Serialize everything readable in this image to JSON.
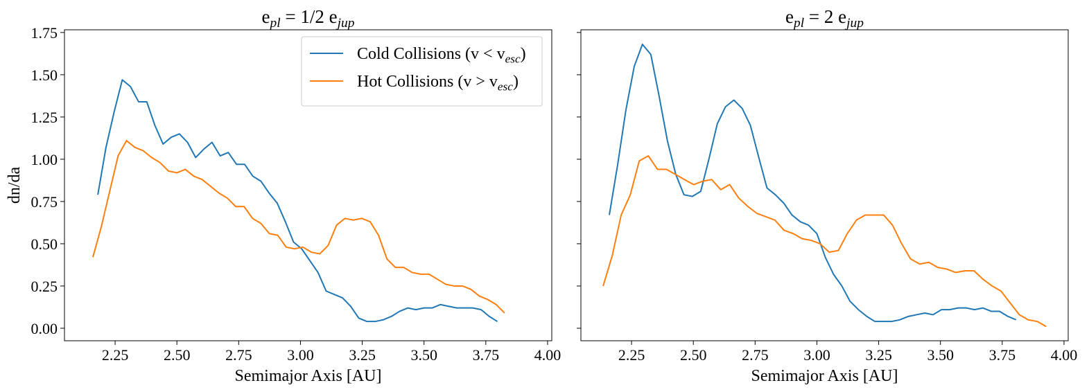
{
  "chart_data": [
    {
      "type": "line",
      "title": [
        "e",
        "pl",
        " = 1/2 e",
        "jup"
      ],
      "xlabel": "Semimajor Axis [AU]",
      "ylabel": "dn/da",
      "xlim": [
        2.045,
        4.017
      ],
      "ylim": [
        -0.074,
        1.766
      ],
      "xticks": [
        2.25,
        {
          "value": 2.5,
          "label": "2.50"
        },
        2.75,
        {
          "value": 3.0,
          "label": "3.00"
        },
        3.25,
        {
          "value": 3.5,
          "label": "3.50"
        },
        3.75,
        {
          "value": 4.0,
          "label": "4.00"
        }
      ],
      "yticks": [
        {
          "value": 0,
          "label": "0.00"
        },
        0.25,
        {
          "value": 0.5,
          "label": "0.50"
        },
        0.75,
        {
          "value": 1.0,
          "label": "1.00"
        },
        1.25,
        {
          "value": 1.5,
          "label": "1.50"
        },
        1.75
      ],
      "legend": "upper right",
      "series": [
        {
          "name": [
            "Cold Collisions (v < v",
            "esc",
            ")"
          ],
          "color": "#1f77b4",
          "x": [
            2.18,
            2.213,
            2.246,
            2.279,
            2.312,
            2.345,
            2.378,
            2.411,
            2.444,
            2.477,
            2.51,
            2.543,
            2.576,
            2.609,
            2.642,
            2.675,
            2.708,
            2.741,
            2.774,
            2.807,
            2.84,
            2.873,
            2.906,
            2.939,
            2.972,
            3.005,
            3.038,
            3.071,
            3.104,
            3.137,
            3.17,
            3.203,
            3.236,
            3.269,
            3.302,
            3.335,
            3.368,
            3.401,
            3.434,
            3.467,
            3.5,
            3.533,
            3.566,
            3.599,
            3.632,
            3.665,
            3.698,
            3.731,
            3.764,
            3.797
          ],
          "values": [
            0.79,
            1.07,
            1.28,
            1.47,
            1.43,
            1.34,
            1.34,
            1.2,
            1.09,
            1.13,
            1.15,
            1.1,
            1.01,
            1.06,
            1.1,
            1.02,
            1.04,
            0.97,
            0.97,
            0.9,
            0.87,
            0.8,
            0.74,
            0.63,
            0.51,
            0.47,
            0.4,
            0.33,
            0.22,
            0.2,
            0.18,
            0.13,
            0.06,
            0.04,
            0.04,
            0.05,
            0.07,
            0.1,
            0.12,
            0.11,
            0.12,
            0.12,
            0.14,
            0.13,
            0.12,
            0.12,
            0.12,
            0.11,
            0.07,
            0.04
          ]
        },
        {
          "name": [
            "Hot Collisions (v > v",
            "esc",
            ")"
          ],
          "color": "#ff7f0e",
          "x": [
            2.16,
            2.194,
            2.228,
            2.262,
            2.296,
            2.33,
            2.364,
            2.398,
            2.432,
            2.466,
            2.5,
            2.534,
            2.568,
            2.602,
            2.636,
            2.67,
            2.704,
            2.738,
            2.772,
            2.806,
            2.84,
            2.874,
            2.908,
            2.942,
            2.976,
            3.01,
            3.044,
            3.078,
            3.112,
            3.146,
            3.18,
            3.214,
            3.248,
            3.282,
            3.316,
            3.35,
            3.384,
            3.418,
            3.452,
            3.486,
            3.52,
            3.554,
            3.588,
            3.622,
            3.656,
            3.69,
            3.724,
            3.758,
            3.792,
            3.826
          ],
          "values": [
            0.42,
            0.6,
            0.81,
            1.02,
            1.11,
            1.07,
            1.05,
            1.01,
            0.98,
            0.93,
            0.92,
            0.94,
            0.9,
            0.88,
            0.84,
            0.8,
            0.77,
            0.72,
            0.72,
            0.65,
            0.62,
            0.56,
            0.55,
            0.48,
            0.47,
            0.48,
            0.45,
            0.44,
            0.49,
            0.61,
            0.65,
            0.64,
            0.65,
            0.63,
            0.55,
            0.41,
            0.36,
            0.36,
            0.33,
            0.32,
            0.32,
            0.29,
            0.26,
            0.25,
            0.25,
            0.23,
            0.19,
            0.17,
            0.14,
            0.09
          ]
        }
      ]
    },
    {
      "type": "line",
      "title": [
        "e",
        "pl",
        " = 2 e",
        "jup"
      ],
      "xlabel": "Semimajor Axis [AU]",
      "xlim": [
        2.045,
        4.017
      ],
      "ylim": [
        -0.074,
        1.766
      ],
      "xticks": [
        2.25,
        {
          "value": 2.5,
          "label": "2.50"
        },
        2.75,
        {
          "value": 3.0,
          "label": "3.00"
        },
        3.25,
        {
          "value": 3.5,
          "label": "3.50"
        },
        3.75,
        {
          "value": 4.0,
          "label": "4.00"
        }
      ],
      "yticks": [
        0,
        0.25,
        0.5,
        0.75,
        1.0,
        1.25,
        1.5,
        1.75
      ],
      "y_tick_labels": false,
      "series": [
        {
          "color": "#1f77b4",
          "x": [
            2.16,
            2.194,
            2.227,
            2.261,
            2.294,
            2.328,
            2.362,
            2.395,
            2.429,
            2.462,
            2.496,
            2.53,
            2.563,
            2.597,
            2.63,
            2.664,
            2.698,
            2.731,
            2.765,
            2.798,
            2.832,
            2.866,
            2.899,
            2.933,
            2.966,
            3.0,
            3.034,
            3.067,
            3.101,
            3.134,
            3.168,
            3.202,
            3.235,
            3.269,
            3.302,
            3.336,
            3.37,
            3.403,
            3.437,
            3.47,
            3.504,
            3.538,
            3.571,
            3.605,
            3.638,
            3.672,
            3.706,
            3.739,
            3.773,
            3.806
          ],
          "values": [
            0.67,
            0.97,
            1.29,
            1.55,
            1.68,
            1.62,
            1.37,
            1.11,
            0.91,
            0.79,
            0.78,
            0.81,
            1.0,
            1.21,
            1.31,
            1.35,
            1.3,
            1.2,
            1.01,
            0.83,
            0.79,
            0.74,
            0.67,
            0.63,
            0.61,
            0.56,
            0.42,
            0.32,
            0.25,
            0.16,
            0.11,
            0.07,
            0.04,
            0.04,
            0.04,
            0.05,
            0.07,
            0.08,
            0.09,
            0.08,
            0.11,
            0.11,
            0.12,
            0.12,
            0.11,
            0.12,
            0.1,
            0.1,
            0.07,
            0.05
          ]
        },
        {
          "color": "#ff7f0e",
          "x": [
            2.135,
            2.172,
            2.208,
            2.245,
            2.281,
            2.318,
            2.355,
            2.391,
            2.428,
            2.464,
            2.501,
            2.538,
            2.574,
            2.611,
            2.647,
            2.684,
            2.721,
            2.757,
            2.794,
            2.83,
            2.867,
            2.904,
            2.94,
            2.977,
            3.013,
            3.05,
            3.087,
            3.123,
            3.16,
            3.196,
            3.233,
            3.27,
            3.306,
            3.343,
            3.379,
            3.416,
            3.453,
            3.489,
            3.526,
            3.562,
            3.599,
            3.636,
            3.672,
            3.709,
            3.745,
            3.782,
            3.819,
            3.855,
            3.892,
            3.928
          ],
          "values": [
            0.25,
            0.43,
            0.67,
            0.79,
            0.99,
            1.02,
            0.94,
            0.94,
            0.91,
            0.88,
            0.85,
            0.87,
            0.88,
            0.82,
            0.85,
            0.77,
            0.72,
            0.68,
            0.66,
            0.64,
            0.58,
            0.56,
            0.53,
            0.52,
            0.5,
            0.45,
            0.46,
            0.56,
            0.64,
            0.67,
            0.67,
            0.67,
            0.61,
            0.5,
            0.41,
            0.38,
            0.39,
            0.36,
            0.35,
            0.33,
            0.34,
            0.34,
            0.29,
            0.25,
            0.22,
            0.15,
            0.08,
            0.05,
            0.04,
            0.01
          ]
        }
      ]
    }
  ]
}
